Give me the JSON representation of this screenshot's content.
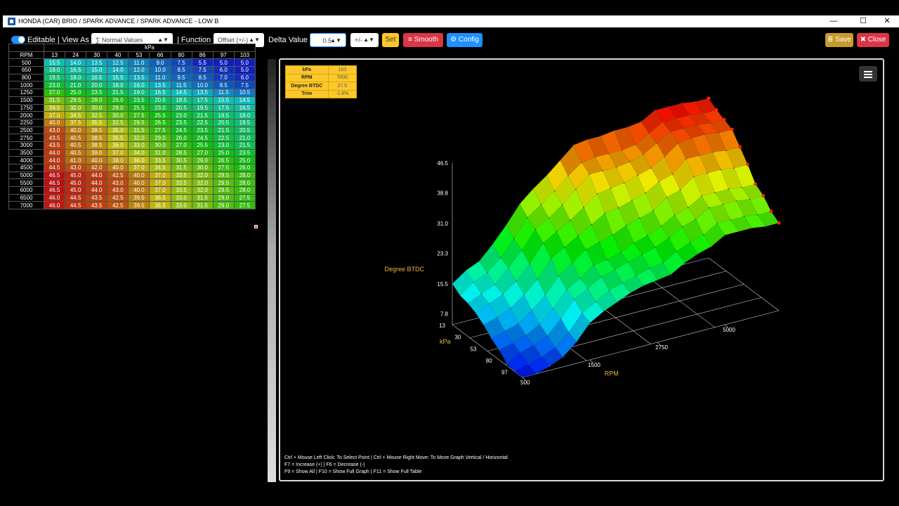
{
  "window": {
    "title": "HONDA (CAR) BRIO / SPARK ADVANCE / SPARK ADVANCE - LOW B",
    "controls": {
      "minimize": "—",
      "maximize": "☐",
      "close": "✕"
    }
  },
  "toolbar": {
    "editable_label": "Editable |",
    "view_as_label": "View As",
    "view_as_value": "∑ Normal Values",
    "function_label": "| Function",
    "function_value": "Offset (+/-)",
    "delta_label": "Delta Value",
    "delta_value": "0.5",
    "sign_value": "+/-",
    "set_label": "Set",
    "smooth_label": "Smooth",
    "config_label": "Config",
    "save_label": "Save",
    "close_label": "Close",
    "colors": {
      "accent": "#1e90ff",
      "set": "#fcc72b",
      "smooth": "#dc3545",
      "config": "#1e90ff",
      "save": "#c69b2b",
      "close": "#dc3545"
    }
  },
  "table": {
    "column_group": "kPa",
    "row_header": "RPM",
    "kpa": [
      "13",
      "24",
      "30",
      "40",
      "53",
      "66",
      "80",
      "86",
      "97",
      "103"
    ],
    "rows": [
      {
        "rpm": "500",
        "values": [
          "15.5",
          "14.0",
          "13.5",
          "12.5",
          "11.0",
          "9.0",
          "7.5",
          "5.5",
          "5.0",
          "5.0"
        ]
      },
      {
        "rpm": "650",
        "values": [
          "18.0",
          "16.5",
          "15.0",
          "14.0",
          "12.0",
          "10.0",
          "8.5",
          "7.5",
          "6.0",
          "5.0"
        ]
      },
      {
        "rpm": "800",
        "values": [
          "19.5",
          "18.0",
          "16.5",
          "15.5",
          "13.5",
          "11.0",
          "9.5",
          "8.5",
          "7.0",
          "6.0"
        ]
      },
      {
        "rpm": "1000",
        "values": [
          "23.0",
          "21.0",
          "20.0",
          "18.0",
          "16.0",
          "13.5",
          "11.5",
          "10.0",
          "8.5",
          "7.5"
        ]
      },
      {
        "rpm": "1250",
        "values": [
          "27.0",
          "25.0",
          "23.5",
          "21.5",
          "19.0",
          "16.5",
          "14.5",
          "13.5",
          "11.5",
          "10.5"
        ]
      },
      {
        "rpm": "1500",
        "values": [
          "31.5",
          "29.5",
          "28.0",
          "26.0",
          "23.5",
          "20.5",
          "18.5",
          "17.5",
          "15.5",
          "14.5"
        ]
      },
      {
        "rpm": "1750",
        "values": [
          "34.5",
          "32.0",
          "30.0",
          "28.0",
          "25.5",
          "23.0",
          "20.5",
          "19.5",
          "17.5",
          "16.5"
        ]
      },
      {
        "rpm": "2000",
        "values": [
          "37.0",
          "34.5",
          "32.5",
          "30.0",
          "27.5",
          "25.5",
          "23.0",
          "21.5",
          "19.5",
          "18.0"
        ]
      },
      {
        "rpm": "2250",
        "values": [
          "40.0",
          "37.5",
          "35.5",
          "32.5",
          "29.5",
          "26.5",
          "23.5",
          "22.5",
          "20.5",
          "19.5"
        ]
      },
      {
        "rpm": "2500",
        "values": [
          "43.0",
          "40.0",
          "38.5",
          "35.0",
          "31.5",
          "27.5",
          "24.5",
          "23.5",
          "21.5",
          "20.5"
        ]
      },
      {
        "rpm": "2750",
        "values": [
          "43.5",
          "40.5",
          "38.5",
          "35.5",
          "32.0",
          "29.0",
          "26.0",
          "24.5",
          "22.5",
          "21.0"
        ]
      },
      {
        "rpm": "3000",
        "values": [
          "43.5",
          "40.5",
          "38.5",
          "36.0",
          "33.0",
          "30.0",
          "27.0",
          "25.5",
          "23.0",
          "21.5"
        ]
      },
      {
        "rpm": "3500",
        "values": [
          "44.0",
          "40.5",
          "39.0",
          "37.0",
          "34.0",
          "31.0",
          "28.5",
          "27.0",
          "25.0",
          "23.5"
        ]
      },
      {
        "rpm": "4000",
        "values": [
          "44.0",
          "41.0",
          "40.0",
          "38.0",
          "36.0",
          "33.5",
          "30.5",
          "29.0",
          "26.5",
          "25.0"
        ]
      },
      {
        "rpm": "4500",
        "values": [
          "44.5",
          "43.0",
          "42.0",
          "40.0",
          "37.0",
          "34.5",
          "31.5",
          "30.0",
          "27.5",
          "26.0"
        ]
      },
      {
        "rpm": "5000",
        "values": [
          "46.5",
          "45.0",
          "44.0",
          "42.5",
          "40.0",
          "37.0",
          "33.5",
          "32.0",
          "29.5",
          "28.0"
        ]
      },
      {
        "rpm": "5500",
        "values": [
          "46.5",
          "45.0",
          "44.0",
          "43.0",
          "40.0",
          "37.0",
          "33.5",
          "32.0",
          "29.5",
          "28.0"
        ]
      },
      {
        "rpm": "6000",
        "values": [
          "46.5",
          "45.0",
          "44.0",
          "43.0",
          "40.0",
          "37.0",
          "33.5",
          "32.0",
          "29.5",
          "28.0"
        ]
      },
      {
        "rpm": "6500",
        "values": [
          "46.0",
          "44.5",
          "43.5",
          "42.5",
          "39.5",
          "36.5",
          "33.0",
          "31.5",
          "29.0",
          "27.5"
        ]
      },
      {
        "rpm": "7000",
        "values": [
          "46.0",
          "44.5",
          "43.5",
          "42.5",
          "39.5",
          "36.5",
          "33.0",
          "31.5",
          "29.0",
          "27.5"
        ]
      }
    ]
  },
  "info": [
    {
      "k": "kPa",
      "v": "103"
    },
    {
      "k": "RPM",
      "v": "7000"
    },
    {
      "k": "Degree BTDC",
      "v": "27.5"
    },
    {
      "k": "Trim",
      "v": "-1.8%"
    }
  ],
  "graph": {
    "z_label": "Degree BTDC",
    "z_ticks": [
      "46.5",
      "38.8",
      "31.0",
      "23.3",
      "15.5",
      "7.8"
    ],
    "kpa_label": "kPa",
    "kpa_ticks": [
      "13",
      "30",
      "53",
      "80",
      "97"
    ],
    "rpm_label": "RPM",
    "rpm_ticks": [
      "500",
      "1500",
      "2750",
      "5000"
    ],
    "z_range": [
      5.0,
      46.5
    ],
    "label_color": "#f0b23a"
  },
  "help": {
    "line1": "Ctrl + Mouse Left Click: To Select Point | Ctrl + Mouse Right Move: To Move Graph Vertical / Horizontal",
    "line2": "F7 = Increase (+) | F6 = Decrease (-)",
    "line3": "F9 = Show All | F10 = Show Full Graph | F11 = Show Full Table"
  }
}
